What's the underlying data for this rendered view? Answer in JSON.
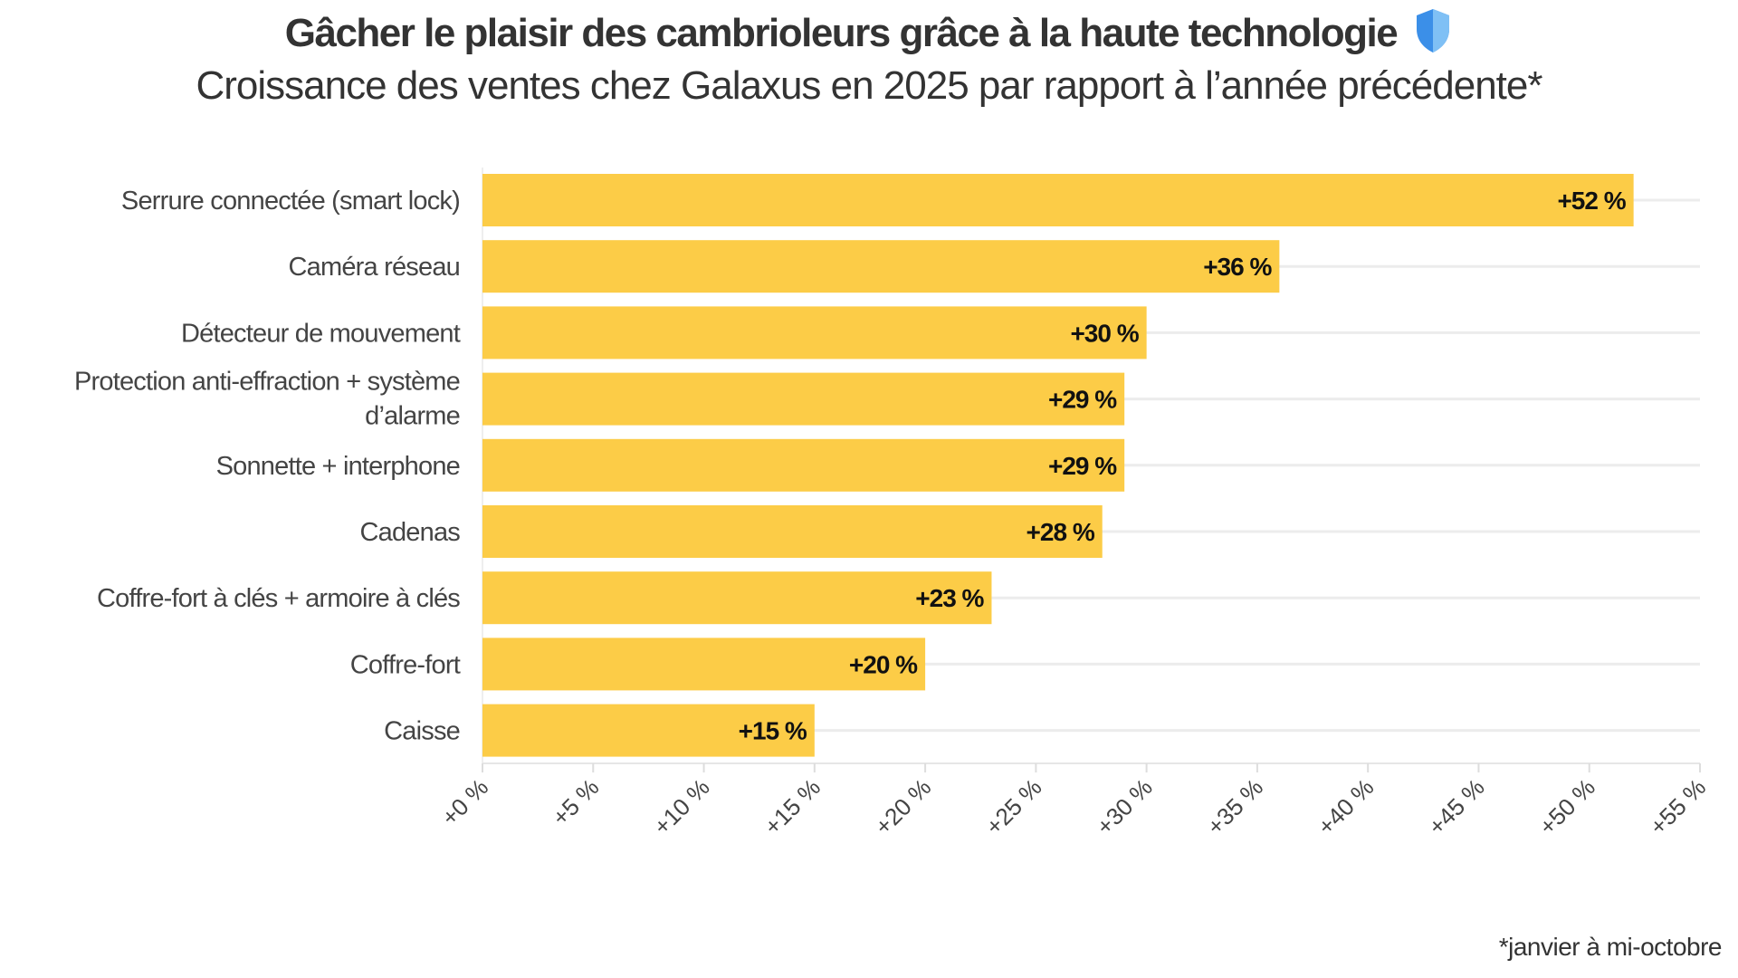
{
  "chart_data": {
    "type": "bar",
    "orientation": "horizontal",
    "title": "Gâcher le plaisir des cambrioleurs grâce à la haute technologie",
    "title_icon": "shield-icon",
    "subtitle": "Croissance des ventes chez Galaxus en 2025 par rapport à l’année précédente*",
    "categories": [
      "Serrure connectée (smart lock)",
      "Caméra réseau",
      "Détecteur de mouvement",
      "Protection anti-effraction + système d’alarme",
      "Sonnette + interphone",
      "Cadenas",
      "Coffre-fort à clés + armoire à clés",
      "Coffre-fort",
      "Caisse"
    ],
    "values": [
      52,
      36,
      30,
      29,
      29,
      28,
      23,
      20,
      15
    ],
    "data_labels": [
      "+52 %",
      "+36 %",
      "+30 %",
      "+29 %",
      "+29 %",
      "+28 %",
      "+23 %",
      "+20 %",
      "+15 %"
    ],
    "xlim": [
      0,
      55
    ],
    "x_ticks": [
      0,
      5,
      10,
      15,
      20,
      25,
      30,
      35,
      40,
      45,
      50,
      55
    ],
    "x_tick_labels": [
      "+0 %",
      "+5 %",
      "+10 %",
      "+15 %",
      "+20 %",
      "+25 %",
      "+30 %",
      "+35 %",
      "+40 %",
      "+45 %",
      "+50 %",
      "+55 %"
    ],
    "xlabel": "",
    "ylabel": "",
    "grid": "horizontal",
    "bar_color": "#FCCC47",
    "shield_color": "#3B8FE8",
    "footnote": "*janvier à mi-octobre"
  }
}
